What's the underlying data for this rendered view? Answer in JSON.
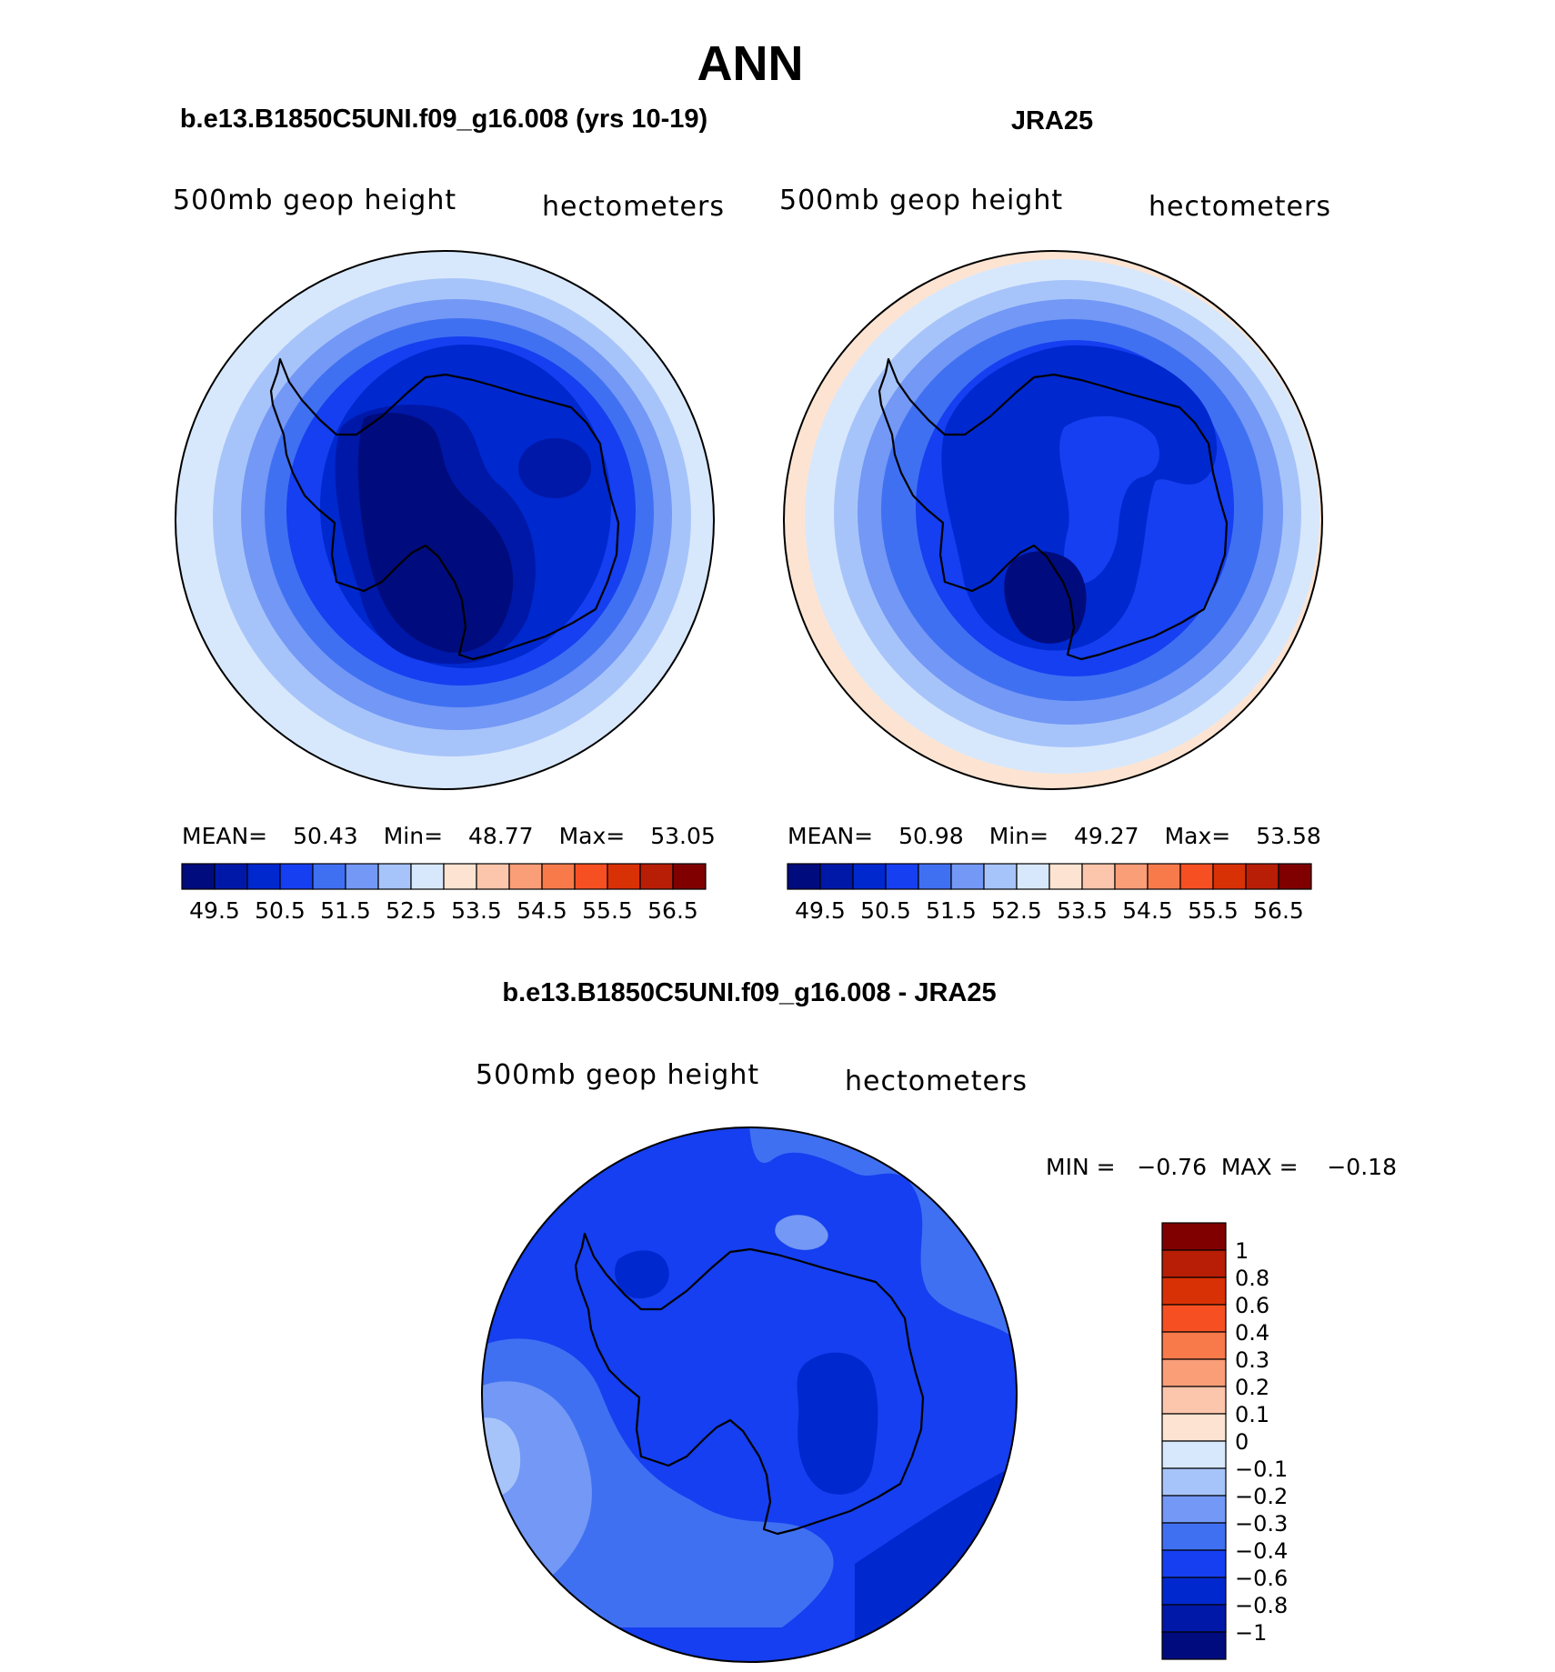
{
  "page_title": "ANN",
  "panels": [
    {
      "title": "b.e13.B1850C5UNI.f09_g16.008 (yrs 10-19)",
      "variable": "500mb geop height",
      "units": "hectometers",
      "stats": {
        "mean_label": "MEAN=",
        "mean": "50.43",
        "min_label": "Min=",
        "min": "48.77",
        "max_label": "Max=",
        "max": "53.05"
      }
    },
    {
      "title": "JRA25",
      "variable": "500mb geop height",
      "units": "hectometers",
      "stats": {
        "mean_label": "MEAN=",
        "mean": "50.98",
        "min_label": "Min=",
        "min": "49.27",
        "max_label": "Max=",
        "max": "53.58"
      }
    },
    {
      "title": "b.e13.B1850C5UNI.f09_g16.008 - JRA25",
      "variable": "500mb geop height",
      "units": "hectometers",
      "stats_text": "MIN =   −0.76  MAX =    −0.18"
    }
  ],
  "chart_data": [
    {
      "type": "heatmap",
      "projection": "south-polar-stereographic",
      "title": "b.e13.B1850C5UNI.f09_g16.008 (yrs 10-19)",
      "variable": "500mb geop height",
      "units": "hectometers",
      "mean": 50.43,
      "min": 48.77,
      "max": 53.05,
      "colorbar_orientation": "horizontal",
      "colorbar_ticks": [
        "49.5",
        "50.5",
        "51.5",
        "52.5",
        "53.5",
        "54.5",
        "55.5",
        "56.5"
      ]
    },
    {
      "type": "heatmap",
      "projection": "south-polar-stereographic",
      "title": "JRA25",
      "variable": "500mb geop height",
      "units": "hectometers",
      "mean": 50.98,
      "min": 49.27,
      "max": 53.58,
      "colorbar_orientation": "horizontal",
      "colorbar_ticks": [
        "49.5",
        "50.5",
        "51.5",
        "52.5",
        "53.5",
        "54.5",
        "55.5",
        "56.5"
      ]
    },
    {
      "type": "heatmap",
      "projection": "south-polar-stereographic",
      "title": "b.e13.B1850C5UNI.f09_g16.008 - JRA25",
      "variable": "500mb geop height",
      "units": "hectometers",
      "min": -0.76,
      "max": -0.18,
      "colorbar_orientation": "vertical",
      "colorbar_ticks": [
        "1",
        "0.8",
        "0.6",
        "0.4",
        "0.3",
        "0.2",
        "0.1",
        "0",
        "−0.1",
        "−0.2",
        "−0.3",
        "−0.4",
        "−0.6",
        "−0.8",
        "−1"
      ]
    }
  ],
  "palette": [
    "#000c7d",
    "#0018a8",
    "#0028cf",
    "#153ff0",
    "#4070f2",
    "#7398f5",
    "#a7c4fa",
    "#d8e8fc",
    "#fde4d2",
    "#fcc6ac",
    "#fa9e78",
    "#f87a4a",
    "#f65022",
    "#d93106",
    "#b71e05",
    "#800000"
  ]
}
